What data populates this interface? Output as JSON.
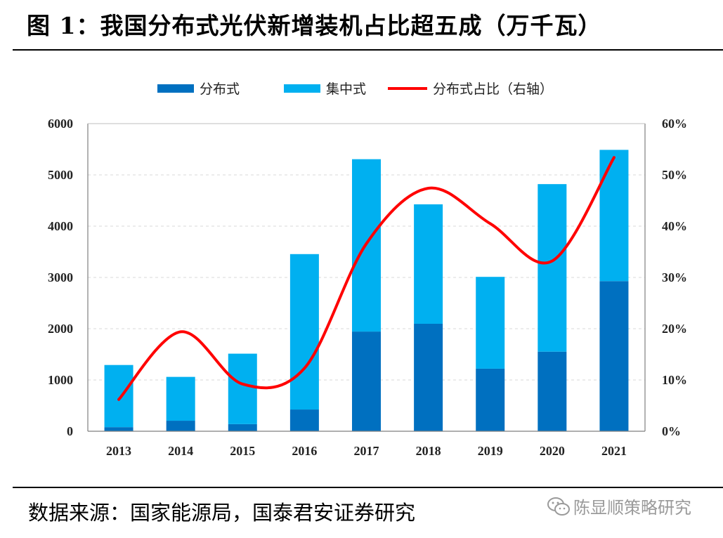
{
  "title": "图 1：我国分布式光伏新增装机占比超五成（万千瓦）",
  "source": "数据来源：国家能源局，国泰君安证券研究",
  "watermark": "陈显顺策略研究",
  "chart_data": {
    "type": "bar",
    "stacked": true,
    "categories": [
      "2013",
      "2014",
      "2015",
      "2016",
      "2017",
      "2018",
      "2019",
      "2020",
      "2021"
    ],
    "series": [
      {
        "name": "分布式",
        "type": "bar",
        "axis": "left",
        "color": "#0070C0",
        "values": [
          80,
          205,
          139,
          424,
          1944,
          2096,
          1220,
          1552,
          2928
        ]
      },
      {
        "name": "集中式",
        "type": "bar",
        "axis": "left",
        "color": "#00B0F0",
        "values": [
          1212,
          855,
          1374,
          3031,
          3362,
          2330,
          1791,
          3268,
          2560
        ]
      },
      {
        "name": "分布式占比（右轴）",
        "type": "line",
        "axis": "right",
        "color": "#FF0000",
        "values": [
          6.2,
          19.4,
          9.2,
          12.3,
          36.6,
          47.4,
          40.5,
          33.2,
          53.4
        ]
      }
    ],
    "ylim_left": [
      0,
      6000
    ],
    "yticks_left": [
      "0",
      "1000",
      "2000",
      "3000",
      "4000",
      "5000",
      "6000"
    ],
    "ylim_right": [
      0,
      60
    ],
    "yticks_right": [
      "0%",
      "10%",
      "20%",
      "30%",
      "40%",
      "50%",
      "60%"
    ],
    "grid": true,
    "legend_position": "top"
  }
}
